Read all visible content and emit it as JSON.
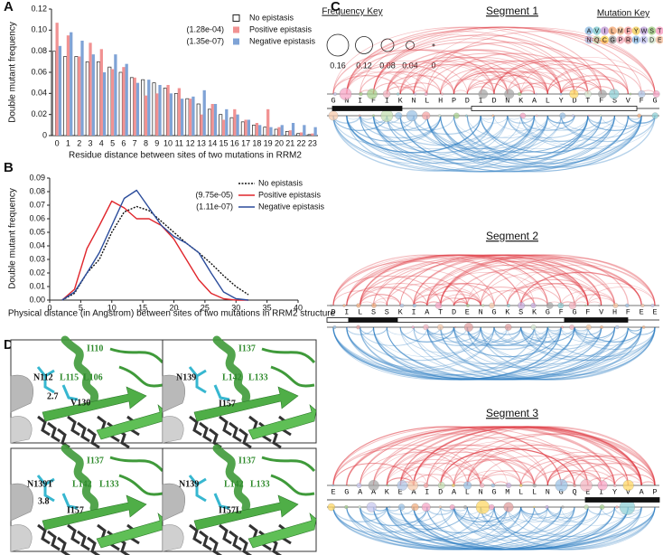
{
  "chart_data": [
    {
      "type": "bar",
      "panel_label": "A",
      "x_label": "Residue distance between sites of two mutations in RRM2",
      "y_label": "Double mutant frequency",
      "categories": [
        "0",
        "1",
        "2",
        "3",
        "4",
        "5",
        "6",
        "7",
        "8",
        "9",
        "10",
        "11",
        "12",
        "13",
        "14",
        "15",
        "16",
        "17",
        "18",
        "19",
        "20",
        "21",
        "22",
        "23"
      ],
      "series": [
        {
          "name": "No epistasis",
          "color": "#ffffff",
          "values": [
            0.08,
            0.075,
            0.075,
            0.07,
            0.07,
            0.065,
            0.06,
            0.055,
            0.053,
            0.05,
            0.045,
            0.04,
            0.035,
            0.03,
            0.025,
            0.02,
            0.017,
            0.013,
            0.01,
            0.008,
            0.006,
            0.004,
            0.002,
            0.001
          ]
        },
        {
          "name": "Positive epistasis",
          "color": "#f19292",
          "values": [
            0.107,
            0.095,
            0.075,
            0.088,
            0.082,
            0.063,
            0.065,
            0.055,
            0.038,
            0.04,
            0.048,
            0.045,
            0.035,
            0.02,
            0.03,
            0.015,
            0.025,
            0.015,
            0.012,
            0.025,
            0.008,
            0.005,
            0.003,
            0.002
          ]
        },
        {
          "name": "Negative epistasis",
          "color": "#7fa3d6",
          "values": [
            0.085,
            0.098,
            0.09,
            0.077,
            0.06,
            0.077,
            0.068,
            0.05,
            0.053,
            0.048,
            0.04,
            0.035,
            0.037,
            0.043,
            0.03,
            0.025,
            0.02,
            0.015,
            0.01,
            0.008,
            0.01,
            0.012,
            0.01,
            0.008
          ]
        }
      ],
      "ylim": [
        0,
        0.12
      ],
      "yticks": [
        0,
        0.02,
        0.04,
        0.06,
        0.08,
        {
          "value": 0.1,
          "label": "0.10"
        },
        0.12
      ],
      "annotations": [
        "(1.28e-04)",
        "(1.35e-07)"
      ],
      "legend": "upper right"
    },
    {
      "type": "line",
      "panel_label": "B",
      "x_label": "Physical distance (in Angstrom) between sites of two mutations in RRM2 structure",
      "y_label": "Double mutant frequency",
      "x": [
        2,
        4,
        6,
        8,
        10,
        12,
        14,
        16,
        18,
        20,
        22,
        24,
        26,
        28,
        30,
        32
      ],
      "series": [
        {
          "name": "No epistasis",
          "color": "#111111",
          "linestyle": "dotted",
          "values": [
            0,
            0.005,
            0.02,
            0.03,
            0.05,
            0.065,
            0.069,
            0.066,
            0.058,
            0.05,
            0.042,
            0.035,
            0.027,
            0.018,
            0.01,
            0.004
          ]
        },
        {
          "name": "Positive epistasis",
          "color": "#e0262c",
          "linestyle": "solid",
          "values": [
            0,
            0.008,
            0.038,
            0.055,
            0.073,
            0.068,
            0.06,
            0.06,
            0.055,
            0.045,
            0.03,
            0.015,
            0.005,
            0.001,
            0,
            0
          ]
        },
        {
          "name": "Negative epistasis",
          "color": "#2b4c9b",
          "linestyle": "solid",
          "values": [
            0,
            0.006,
            0.02,
            0.035,
            0.055,
            0.075,
            0.081,
            0.068,
            0.055,
            0.047,
            0.042,
            0.035,
            0.02,
            0.006,
            0.001,
            0
          ]
        }
      ],
      "xlim": [
        0,
        40
      ],
      "xticks": [
        0,
        5,
        10,
        15,
        20,
        25,
        30,
        35,
        40
      ],
      "ylim": [
        0,
        0.09
      ],
      "yticks": [
        {
          "value": 0,
          "label": "0.00"
        },
        0.01,
        0.02,
        0.03,
        0.04,
        0.05,
        0.06,
        0.07,
        0.08,
        0.09
      ],
      "annotations": [
        "(9.75e-05)",
        "(1.11e-07)"
      ],
      "legend": "upper right"
    }
  ],
  "arc_panel": {
    "panel_label": "C",
    "frequency_key": {
      "title": "Frequency Key",
      "labels": [
        0.16,
        0.12,
        0.08,
        0.04,
        0
      ]
    },
    "mutation_key": {
      "title": "Mutation Key",
      "rows": [
        [
          "A",
          "V",
          "I",
          "L",
          "M",
          "F",
          "Y",
          "W",
          "S",
          "T"
        ],
        [
          "N",
          "Q",
          "C",
          "G",
          "P",
          "R",
          "H",
          "K",
          "D",
          "E"
        ]
      ]
    },
    "segments": [
      {
        "title": "Segment 1",
        "residues": [
          "G",
          "N",
          "I",
          "F",
          "I",
          "K",
          "N",
          "L",
          "H",
          "P",
          "D",
          "I",
          "D",
          "N",
          "K",
          "A",
          "L",
          "Y",
          "D",
          "T",
          "F",
          "S",
          "V",
          "F",
          "G"
        ]
      },
      {
        "title": "Segment 2",
        "residues": [
          "D",
          "I",
          "L",
          "S",
          "S",
          "K",
          "I",
          "A",
          "T",
          "D",
          "E",
          "N",
          "G",
          "K",
          "S",
          "K",
          "G",
          "F",
          "G",
          "F",
          "V",
          "H",
          "F",
          "E",
          "E"
        ]
      },
      {
        "title": "Segment 3",
        "residues": [
          "E",
          "G",
          "A",
          "A",
          "K",
          "E",
          "A",
          "I",
          "D",
          "A",
          "L",
          "N",
          "G",
          "M",
          "L",
          "L",
          "N",
          "G",
          "Q",
          "E",
          "I",
          "Y",
          "V",
          "A",
          "P"
        ]
      }
    ]
  },
  "structure_panel": {
    "panel_label": "D",
    "views": [
      {
        "labels": [
          "I110",
          "N112",
          "L115",
          "L106",
          "2.7",
          "V130"
        ]
      },
      {
        "labels": [
          "I137",
          "N139",
          "L142",
          "L133",
          "I157"
        ]
      },
      {
        "labels": [
          "I137",
          "N139T",
          "L142",
          "L133",
          "3.8",
          "I157"
        ]
      },
      {
        "labels": [
          "I137",
          "N139",
          "L142",
          "L133",
          "I157L"
        ]
      }
    ]
  }
}
